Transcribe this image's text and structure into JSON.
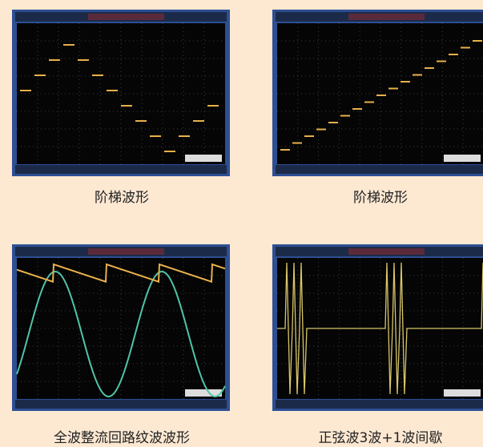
{
  "captions": [
    "阶梯波形",
    "阶梯波形",
    "全波整流回路纹波波形",
    "正弦波3波+1波间歇"
  ]
}
